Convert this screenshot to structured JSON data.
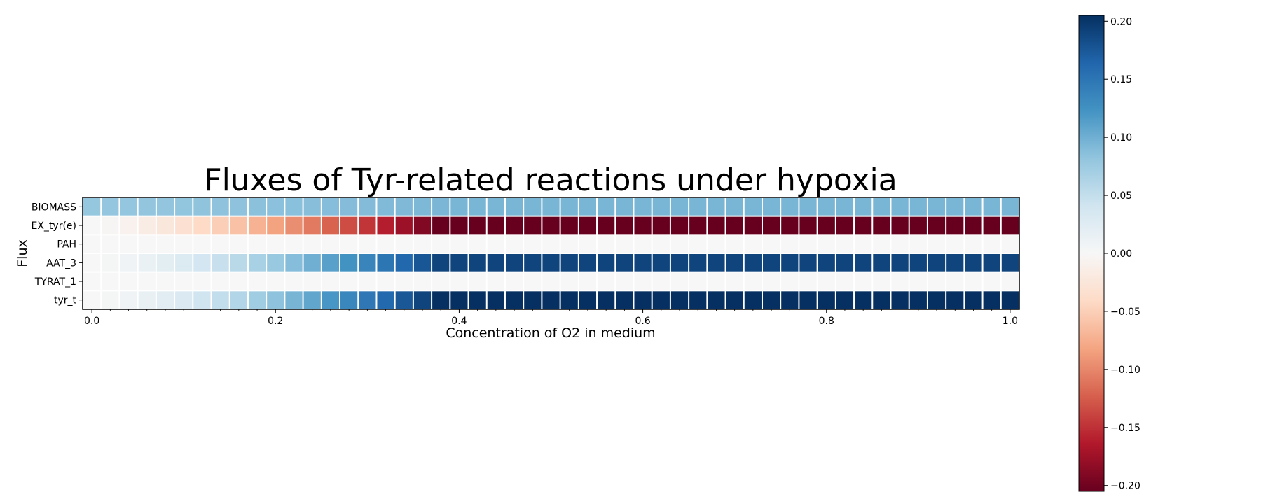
{
  "chart_data": {
    "type": "heatmap",
    "title": "Fluxes of Tyr-related reactions under hypoxia",
    "xlabel": "Concentration of O2 in medium",
    "ylabel": "Flux",
    "rows": [
      "BIOMASS",
      "EX_tyr(e)",
      "PAH",
      "AAT_3",
      "TYRAT_1",
      "tyr_t"
    ],
    "x_ticks": [
      0.0,
      0.2,
      0.4,
      0.6,
      0.8,
      1.0
    ],
    "x_tick_labels": [
      "0.0",
      "0.2",
      "0.4",
      "0.6",
      "0.8",
      "1.0"
    ],
    "n_columns": 51,
    "x_range": [
      0,
      1
    ],
    "value_range": [
      -0.205,
      0.205
    ],
    "colorbar_ticks": [
      0.2,
      0.15,
      0.1,
      0.05,
      0.0,
      -0.05,
      -0.1,
      -0.15,
      -0.2
    ],
    "colorbar_tick_labels": [
      "0.20",
      "0.15",
      "0.10",
      "0.05",
      "0.00",
      "−0.05",
      "−0.10",
      "−0.15",
      "−0.20"
    ],
    "colormap": "RdBu",
    "row_profiles": [
      {
        "name": "BIOMASS",
        "start": 0.08,
        "end": 0.095,
        "saturate_at": 0.4
      },
      {
        "name": "EX_tyr(e)",
        "start": 0.0,
        "end": -0.205,
        "saturate_at": 0.38
      },
      {
        "name": "PAH",
        "start": 0.0,
        "end": 0.0,
        "saturate_at": 0.4
      },
      {
        "name": "AAT_3",
        "start": 0.0,
        "end": 0.19,
        "saturate_at": 0.38
      },
      {
        "name": "TYRAT_1",
        "start": 0.0,
        "end": 0.0,
        "saturate_at": 0.4
      },
      {
        "name": "tyr_t",
        "start": 0.0,
        "end": 0.205,
        "saturate_at": 0.38
      }
    ]
  }
}
